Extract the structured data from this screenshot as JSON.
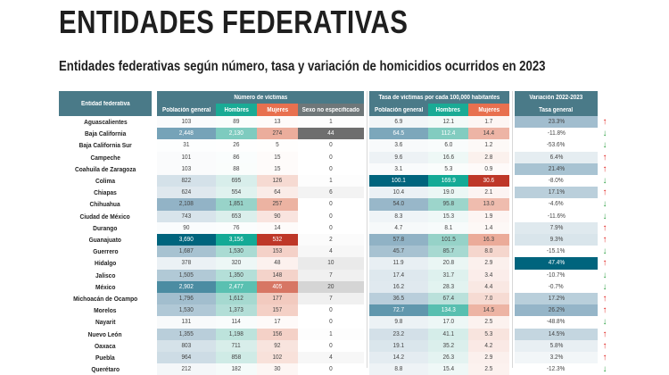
{
  "page": {
    "title": "ENTIDADES FEDERATIVAS",
    "subtitle": "Entidades federativas según número, tasa y variación de homicidios ocurridos en 2023"
  },
  "table": {
    "header": {
      "entity": "Entidad federativa",
      "group_victims": "Número de víctimas",
      "group_rate": "Tasa de víctimas por cada 100,000 habitantes",
      "group_variation": "Variación 2022-2023",
      "victims_cols": [
        "Población general",
        "Hombres",
        "Mujeres",
        "Sexo no especificado"
      ],
      "rate_cols": [
        "Población general",
        "Hombres",
        "Mujeres"
      ],
      "variation_cols": [
        "Tasa general"
      ]
    },
    "colors": {
      "header": "#4a7a88",
      "hombres_header": "#1aab95",
      "mujeres_header": "#e8704f",
      "arrow_up": "#e0201c",
      "arrow_down": "#2ea043"
    },
    "rows": [
      {
        "entity": "Aguascalientes",
        "v_total": "103",
        "v_men": "89",
        "v_women": "13",
        "v_unspec": "1",
        "r_total": "6.9",
        "r_men": "12.1",
        "r_women": "1.7",
        "var": "23.3%",
        "trend": "up"
      },
      {
        "entity": "Baja California",
        "v_total": "2,448",
        "v_men": "2,130",
        "v_women": "274",
        "v_unspec": "44",
        "r_total": "64.5",
        "r_men": "112.4",
        "r_women": "14.4",
        "var": "-11.8%",
        "trend": "down"
      },
      {
        "entity": "Baja California Sur",
        "v_total": "31",
        "v_men": "26",
        "v_women": "5",
        "v_unspec": "0",
        "r_total": "3.6",
        "r_men": "6.0",
        "r_women": "1.2",
        "var": "-53.6%",
        "trend": "down"
      },
      {
        "entity": "Campeche",
        "v_total": "101",
        "v_men": "86",
        "v_women": "15",
        "v_unspec": "0",
        "r_total": "9.6",
        "r_men": "16.6",
        "r_women": "2.8",
        "var": "6.4%",
        "trend": "up"
      },
      {
        "entity": "Coahuila de Zaragoza",
        "v_total": "103",
        "v_men": "88",
        "v_women": "15",
        "v_unspec": "0",
        "r_total": "3.1",
        "r_men": "5.3",
        "r_women": "0.9",
        "var": "21.4%",
        "trend": "up"
      },
      {
        "entity": "Colima",
        "v_total": "822",
        "v_men": "695",
        "v_women": "126",
        "v_unspec": "1",
        "r_total": "100.1",
        "r_men": "169.9",
        "r_women": "30.6",
        "var": "-8.0%",
        "trend": "down"
      },
      {
        "entity": "Chiapas",
        "v_total": "624",
        "v_men": "554",
        "v_women": "64",
        "v_unspec": "6",
        "r_total": "10.4",
        "r_men": "19.0",
        "r_women": "2.1",
        "var": "17.1%",
        "trend": "up"
      },
      {
        "entity": "Chihuahua",
        "v_total": "2,108",
        "v_men": "1,851",
        "v_women": "257",
        "v_unspec": "0",
        "r_total": "54.0",
        "r_men": "95.8",
        "r_women": "13.0",
        "var": "-4.6%",
        "trend": "down"
      },
      {
        "entity": "Ciudad de México",
        "v_total": "743",
        "v_men": "653",
        "v_women": "90",
        "v_unspec": "0",
        "r_total": "8.3",
        "r_men": "15.3",
        "r_women": "1.9",
        "var": "-11.6%",
        "trend": "down"
      },
      {
        "entity": "Durango",
        "v_total": "90",
        "v_men": "76",
        "v_women": "14",
        "v_unspec": "0",
        "r_total": "4.7",
        "r_men": "8.1",
        "r_women": "1.4",
        "var": "7.9%",
        "trend": "up"
      },
      {
        "entity": "Guanajuato",
        "v_total": "3,690",
        "v_men": "3,156",
        "v_women": "532",
        "v_unspec": "2",
        "r_total": "57.8",
        "r_men": "101.5",
        "r_women": "16.3",
        "var": "9.3%",
        "trend": "up"
      },
      {
        "entity": "Guerrero",
        "v_total": "1,687",
        "v_men": "1,530",
        "v_women": "153",
        "v_unspec": "4",
        "r_total": "45.7",
        "r_men": "85.7",
        "r_women": "8.0",
        "var": "-15.1%",
        "trend": "down"
      },
      {
        "entity": "Hidalgo",
        "v_total": "378",
        "v_men": "320",
        "v_women": "48",
        "v_unspec": "10",
        "r_total": "11.9",
        "r_men": "20.8",
        "r_women": "2.9",
        "var": "47.4%",
        "trend": "up"
      },
      {
        "entity": "Jalisco",
        "v_total": "1,505",
        "v_men": "1,350",
        "v_women": "148",
        "v_unspec": "7",
        "r_total": "17.4",
        "r_men": "31.7",
        "r_women": "3.4",
        "var": "-10.7%",
        "trend": "down"
      },
      {
        "entity": "México",
        "v_total": "2,902",
        "v_men": "2,477",
        "v_women": "405",
        "v_unspec": "20",
        "r_total": "16.2",
        "r_men": "28.3",
        "r_women": "4.4",
        "var": "-0.7%",
        "trend": "down"
      },
      {
        "entity": "Michoacán de Ocampo",
        "v_total": "1,796",
        "v_men": "1,612",
        "v_women": "177",
        "v_unspec": "7",
        "r_total": "36.5",
        "r_men": "67.4",
        "r_women": "7.0",
        "var": "17.2%",
        "trend": "up"
      },
      {
        "entity": "Morelos",
        "v_total": "1,530",
        "v_men": "1,373",
        "v_women": "157",
        "v_unspec": "0",
        "r_total": "72.7",
        "r_men": "134.3",
        "r_women": "14.5",
        "var": "26.2%",
        "trend": "up"
      },
      {
        "entity": "Nayarit",
        "v_total": "131",
        "v_men": "114",
        "v_women": "17",
        "v_unspec": "0",
        "r_total": "9.8",
        "r_men": "17.0",
        "r_women": "2.5",
        "var": "-48.8%",
        "trend": "down"
      },
      {
        "entity": "Nuevo León",
        "v_total": "1,355",
        "v_men": "1,198",
        "v_women": "156",
        "v_unspec": "1",
        "r_total": "23.2",
        "r_men": "41.1",
        "r_women": "5.3",
        "var": "14.5%",
        "trend": "up"
      },
      {
        "entity": "Oaxaca",
        "v_total": "803",
        "v_men": "711",
        "v_women": "92",
        "v_unspec": "0",
        "r_total": "19.1",
        "r_men": "35.2",
        "r_women": "4.2",
        "var": "5.8%",
        "trend": "up"
      },
      {
        "entity": "Puebla",
        "v_total": "964",
        "v_men": "858",
        "v_women": "102",
        "v_unspec": "4",
        "r_total": "14.2",
        "r_men": "26.3",
        "r_women": "2.9",
        "var": "3.2%",
        "trend": "up"
      },
      {
        "entity": "Querétaro",
        "v_total": "212",
        "v_men": "182",
        "v_women": "30",
        "v_unspec": "0",
        "r_total": "8.8",
        "r_men": "15.4",
        "r_women": "2.5",
        "var": "-12.3%",
        "trend": "down"
      }
    ]
  }
}
